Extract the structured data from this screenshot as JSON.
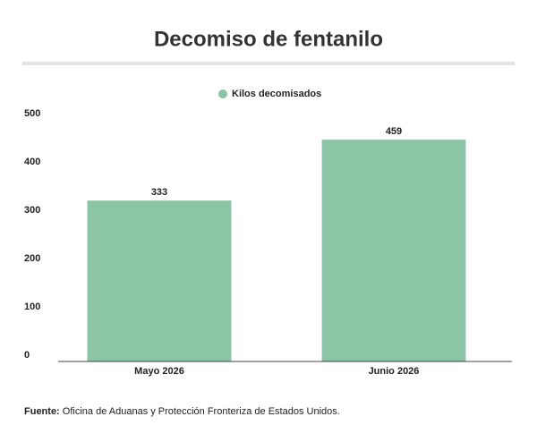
{
  "chart_data": {
    "type": "bar",
    "title": "Decomiso de fentanilo",
    "series": [
      {
        "name": "Kilos decomisados",
        "color": "#8cc4a6",
        "values": [
          333,
          459
        ]
      }
    ],
    "categories": [
      "Mayo 2026",
      "Junio 2026"
    ],
    "ylim": [
      0,
      500
    ],
    "yticks": [
      0,
      100,
      200,
      300,
      400,
      500
    ],
    "legend": "top",
    "source_label": "Fuente:",
    "source_text": "Oficina de Aduanas y Protección Fronteriza de Estados Unidos."
  }
}
